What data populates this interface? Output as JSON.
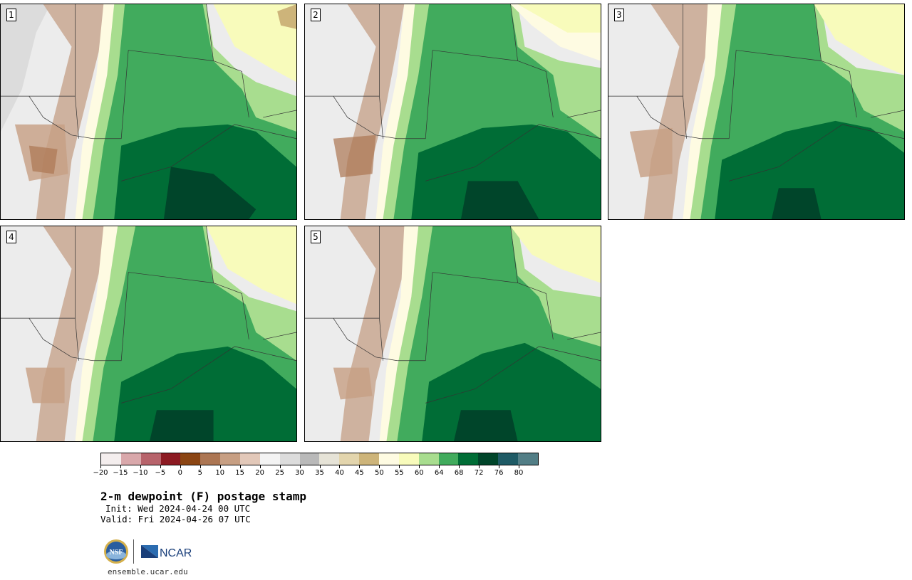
{
  "panels": [
    {
      "label": "1"
    },
    {
      "label": "2"
    },
    {
      "label": "3"
    },
    {
      "label": "4"
    },
    {
      "label": "5"
    }
  ],
  "colorbar": {
    "colors": [
      "#f4eeee",
      "#d9a8ab",
      "#b7636b",
      "#8c1a22",
      "#8b4513",
      "#ac7653",
      "#c79f83",
      "#e2c8b9",
      "#f3f3f3",
      "#dcdcdc",
      "#b9b9b9",
      "#e6e3d7",
      "#e3d5ad",
      "#cdb47a",
      "#fefbe2",
      "#f8fbbb",
      "#a8dd8f",
      "#41ab5d",
      "#006d36",
      "#00452a",
      "#1e5a65",
      "#527e86"
    ],
    "ticks": [
      "−20",
      "−15",
      "−10",
      "−5",
      "0",
      "5",
      "10",
      "15",
      "20",
      "25",
      "30",
      "35",
      "40",
      "45",
      "50",
      "55",
      "60",
      "64",
      "68",
      "72",
      "76",
      "80"
    ]
  },
  "title": "2-m dewpoint (F) postage stamp",
  "init": "Init: Wed 2024-04-24 00 UTC",
  "valid": "Valid: Fri 2024-04-26 07 UTC",
  "logos": {
    "nsf": "NSF",
    "ncar": "NCAR"
  },
  "site": "ensemble.ucar.edu"
}
